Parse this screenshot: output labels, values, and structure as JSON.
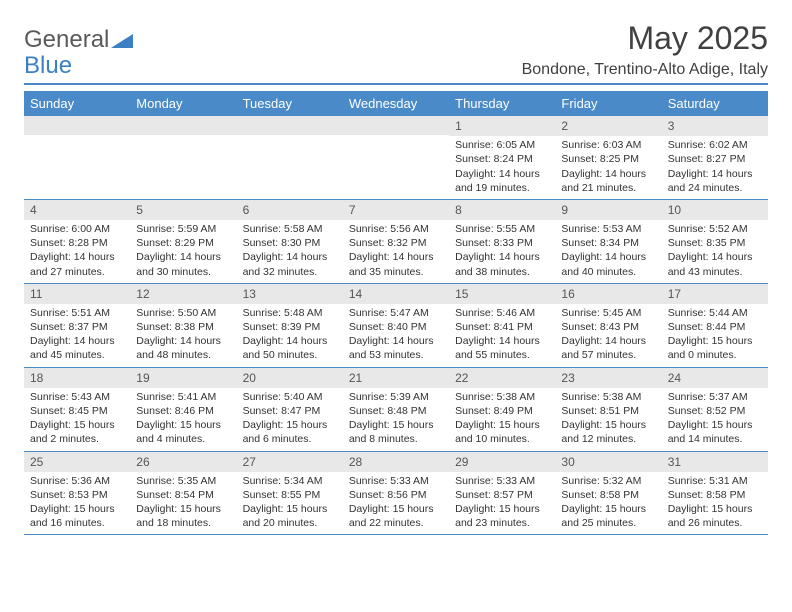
{
  "logo": {
    "text1": "General",
    "text2": "Blue"
  },
  "title": "May 2025",
  "location": "Bondone, Trentino-Alto Adige, Italy",
  "colors": {
    "header_bg": "#4a8ac9",
    "header_text": "#ffffff",
    "daynum_bg": "#e8e8e8",
    "body_text": "#333333",
    "rule": "#4a8ac9"
  },
  "weekdays": [
    "Sunday",
    "Monday",
    "Tuesday",
    "Wednesday",
    "Thursday",
    "Friday",
    "Saturday"
  ],
  "weeks": [
    [
      {
        "n": "",
        "empty": true
      },
      {
        "n": "",
        "empty": true
      },
      {
        "n": "",
        "empty": true
      },
      {
        "n": "",
        "empty": true
      },
      {
        "n": "1",
        "sr": "Sunrise: 6:05 AM",
        "ss": "Sunset: 8:24 PM",
        "d1": "Daylight: 14 hours",
        "d2": "and 19 minutes."
      },
      {
        "n": "2",
        "sr": "Sunrise: 6:03 AM",
        "ss": "Sunset: 8:25 PM",
        "d1": "Daylight: 14 hours",
        "d2": "and 21 minutes."
      },
      {
        "n": "3",
        "sr": "Sunrise: 6:02 AM",
        "ss": "Sunset: 8:27 PM",
        "d1": "Daylight: 14 hours",
        "d2": "and 24 minutes."
      }
    ],
    [
      {
        "n": "4",
        "sr": "Sunrise: 6:00 AM",
        "ss": "Sunset: 8:28 PM",
        "d1": "Daylight: 14 hours",
        "d2": "and 27 minutes."
      },
      {
        "n": "5",
        "sr": "Sunrise: 5:59 AM",
        "ss": "Sunset: 8:29 PM",
        "d1": "Daylight: 14 hours",
        "d2": "and 30 minutes."
      },
      {
        "n": "6",
        "sr": "Sunrise: 5:58 AM",
        "ss": "Sunset: 8:30 PM",
        "d1": "Daylight: 14 hours",
        "d2": "and 32 minutes."
      },
      {
        "n": "7",
        "sr": "Sunrise: 5:56 AM",
        "ss": "Sunset: 8:32 PM",
        "d1": "Daylight: 14 hours",
        "d2": "and 35 minutes."
      },
      {
        "n": "8",
        "sr": "Sunrise: 5:55 AM",
        "ss": "Sunset: 8:33 PM",
        "d1": "Daylight: 14 hours",
        "d2": "and 38 minutes."
      },
      {
        "n": "9",
        "sr": "Sunrise: 5:53 AM",
        "ss": "Sunset: 8:34 PM",
        "d1": "Daylight: 14 hours",
        "d2": "and 40 minutes."
      },
      {
        "n": "10",
        "sr": "Sunrise: 5:52 AM",
        "ss": "Sunset: 8:35 PM",
        "d1": "Daylight: 14 hours",
        "d2": "and 43 minutes."
      }
    ],
    [
      {
        "n": "11",
        "sr": "Sunrise: 5:51 AM",
        "ss": "Sunset: 8:37 PM",
        "d1": "Daylight: 14 hours",
        "d2": "and 45 minutes."
      },
      {
        "n": "12",
        "sr": "Sunrise: 5:50 AM",
        "ss": "Sunset: 8:38 PM",
        "d1": "Daylight: 14 hours",
        "d2": "and 48 minutes."
      },
      {
        "n": "13",
        "sr": "Sunrise: 5:48 AM",
        "ss": "Sunset: 8:39 PM",
        "d1": "Daylight: 14 hours",
        "d2": "and 50 minutes."
      },
      {
        "n": "14",
        "sr": "Sunrise: 5:47 AM",
        "ss": "Sunset: 8:40 PM",
        "d1": "Daylight: 14 hours",
        "d2": "and 53 minutes."
      },
      {
        "n": "15",
        "sr": "Sunrise: 5:46 AM",
        "ss": "Sunset: 8:41 PM",
        "d1": "Daylight: 14 hours",
        "d2": "and 55 minutes."
      },
      {
        "n": "16",
        "sr": "Sunrise: 5:45 AM",
        "ss": "Sunset: 8:43 PM",
        "d1": "Daylight: 14 hours",
        "d2": "and 57 minutes."
      },
      {
        "n": "17",
        "sr": "Sunrise: 5:44 AM",
        "ss": "Sunset: 8:44 PM",
        "d1": "Daylight: 15 hours",
        "d2": "and 0 minutes."
      }
    ],
    [
      {
        "n": "18",
        "sr": "Sunrise: 5:43 AM",
        "ss": "Sunset: 8:45 PM",
        "d1": "Daylight: 15 hours",
        "d2": "and 2 minutes."
      },
      {
        "n": "19",
        "sr": "Sunrise: 5:41 AM",
        "ss": "Sunset: 8:46 PM",
        "d1": "Daylight: 15 hours",
        "d2": "and 4 minutes."
      },
      {
        "n": "20",
        "sr": "Sunrise: 5:40 AM",
        "ss": "Sunset: 8:47 PM",
        "d1": "Daylight: 15 hours",
        "d2": "and 6 minutes."
      },
      {
        "n": "21",
        "sr": "Sunrise: 5:39 AM",
        "ss": "Sunset: 8:48 PM",
        "d1": "Daylight: 15 hours",
        "d2": "and 8 minutes."
      },
      {
        "n": "22",
        "sr": "Sunrise: 5:38 AM",
        "ss": "Sunset: 8:49 PM",
        "d1": "Daylight: 15 hours",
        "d2": "and 10 minutes."
      },
      {
        "n": "23",
        "sr": "Sunrise: 5:38 AM",
        "ss": "Sunset: 8:51 PM",
        "d1": "Daylight: 15 hours",
        "d2": "and 12 minutes."
      },
      {
        "n": "24",
        "sr": "Sunrise: 5:37 AM",
        "ss": "Sunset: 8:52 PM",
        "d1": "Daylight: 15 hours",
        "d2": "and 14 minutes."
      }
    ],
    [
      {
        "n": "25",
        "sr": "Sunrise: 5:36 AM",
        "ss": "Sunset: 8:53 PM",
        "d1": "Daylight: 15 hours",
        "d2": "and 16 minutes."
      },
      {
        "n": "26",
        "sr": "Sunrise: 5:35 AM",
        "ss": "Sunset: 8:54 PM",
        "d1": "Daylight: 15 hours",
        "d2": "and 18 minutes."
      },
      {
        "n": "27",
        "sr": "Sunrise: 5:34 AM",
        "ss": "Sunset: 8:55 PM",
        "d1": "Daylight: 15 hours",
        "d2": "and 20 minutes."
      },
      {
        "n": "28",
        "sr": "Sunrise: 5:33 AM",
        "ss": "Sunset: 8:56 PM",
        "d1": "Daylight: 15 hours",
        "d2": "and 22 minutes."
      },
      {
        "n": "29",
        "sr": "Sunrise: 5:33 AM",
        "ss": "Sunset: 8:57 PM",
        "d1": "Daylight: 15 hours",
        "d2": "and 23 minutes."
      },
      {
        "n": "30",
        "sr": "Sunrise: 5:32 AM",
        "ss": "Sunset: 8:58 PM",
        "d1": "Daylight: 15 hours",
        "d2": "and 25 minutes."
      },
      {
        "n": "31",
        "sr": "Sunrise: 5:31 AM",
        "ss": "Sunset: 8:58 PM",
        "d1": "Daylight: 15 hours",
        "d2": "and 26 minutes."
      }
    ]
  ]
}
